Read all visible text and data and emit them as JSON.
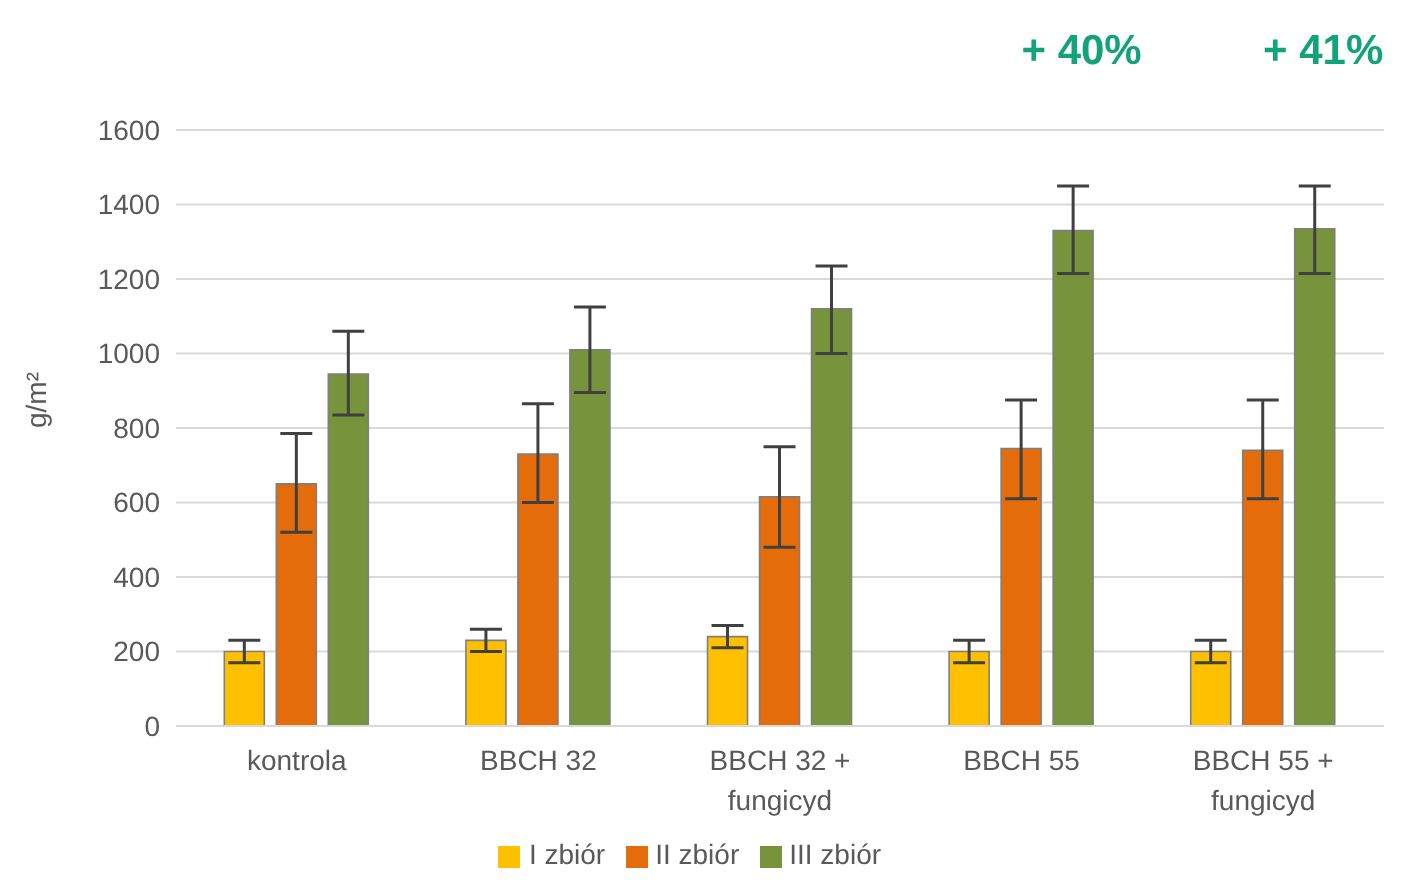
{
  "chart_data": {
    "type": "bar",
    "ylabel": "g/m²",
    "categories": [
      "kontrola",
      "BBCH 32",
      "BBCH 32 + fungicyd",
      "BBCH 55",
      "BBCH 55 + fungicyd"
    ],
    "series": [
      {
        "name": "I zbiór",
        "color": "#ffc000",
        "values": [
          200,
          230,
          240,
          200,
          200
        ],
        "errors": [
          [
            170,
            230
          ],
          [
            200,
            260
          ],
          [
            210,
            270
          ],
          [
            170,
            230
          ],
          [
            170,
            230
          ]
        ]
      },
      {
        "name": "II zbiór",
        "color": "#e46c0a",
        "values": [
          650,
          730,
          615,
          745,
          740
        ],
        "errors": [
          [
            520,
            785
          ],
          [
            600,
            865
          ],
          [
            480,
            750
          ],
          [
            610,
            875
          ],
          [
            610,
            875
          ]
        ]
      },
      {
        "name": "III zbiór",
        "color": "#77933c",
        "values": [
          945,
          1010,
          1120,
          1330,
          1335
        ],
        "errors": [
          [
            835,
            1060
          ],
          [
            895,
            1125
          ],
          [
            1000,
            1235
          ],
          [
            1215,
            1450
          ],
          [
            1215,
            1450
          ]
        ]
      }
    ],
    "ylim": [
      0,
      1600
    ],
    "yticks": [
      0,
      200,
      400,
      600,
      800,
      1000,
      1200,
      1400,
      1600
    ],
    "grid": "y",
    "legend": "bottom",
    "annotations": [
      "+ 40%",
      "+ 41%"
    ]
  }
}
